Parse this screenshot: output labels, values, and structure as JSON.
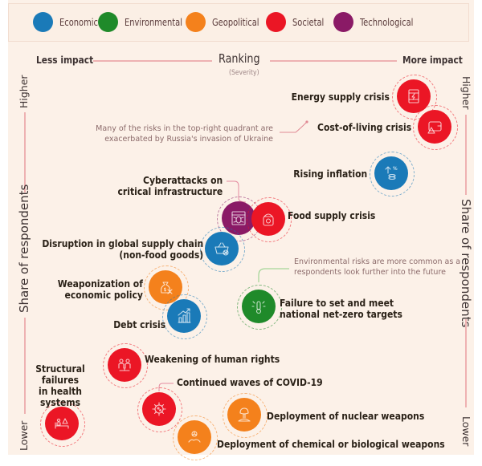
{
  "legend": {
    "items": [
      {
        "label": "Economic",
        "color": "#1a7ab8"
      },
      {
        "label": "Environmental",
        "color": "#1f8a2a"
      },
      {
        "label": "Geopolitical",
        "color": "#f4811c"
      },
      {
        "label": "Societal",
        "color": "#eb1625"
      },
      {
        "label": "Technological",
        "color": "#8a1a66"
      }
    ]
  },
  "x_axis": {
    "title": "Ranking",
    "subtitle": "(Severity)",
    "low_label": "Less impact",
    "high_label": "More impact"
  },
  "y_axis": {
    "title": "Share of respondents",
    "high_label": "Higher",
    "low_label": "Lower"
  },
  "notes": {
    "ukraine": [
      "Many of the risks in the top-right quadrant are",
      "exacerbated by Russia's invasion of Ukraine"
    ],
    "environmental": [
      "Environmental risks are more common as a",
      "respondents look further into the future"
    ]
  },
  "risks": [
    {
      "id": "energy",
      "label": [
        "Energy supply crisis"
      ],
      "category": "Societal",
      "icon": "fuel-barrel-icon"
    },
    {
      "id": "cost",
      "label": [
        "Cost-of-living crisis"
      ],
      "category": "Societal",
      "icon": "wallet-warning-icon"
    },
    {
      "id": "inflation",
      "label": [
        "Rising inflation"
      ],
      "category": "Economic",
      "icon": "coins-arrow-up-icon"
    },
    {
      "id": "cyber",
      "label": [
        "Cyberattacks on",
        "critical infrastructure"
      ],
      "category": "Technological",
      "icon": "computer-bug-icon"
    },
    {
      "id": "food",
      "label": [
        "Food supply crisis"
      ],
      "category": "Societal",
      "icon": "food-sack-icon"
    },
    {
      "id": "supply",
      "label": [
        "Disruption in global supply chain",
        "(non-food goods)"
      ],
      "category": "Economic",
      "icon": "basket-cancel-icon"
    },
    {
      "id": "weapon",
      "label": [
        "Weaponization of",
        "economic policy"
      ],
      "category": "Geopolitical",
      "icon": "money-bag-x-icon"
    },
    {
      "id": "netzero",
      "label": [
        "Failure to set and meet",
        "national net-zero targets"
      ],
      "category": "Environmental",
      "icon": "thermometer-heat-icon"
    },
    {
      "id": "debt",
      "label": [
        "Debt crisis"
      ],
      "category": "Economic",
      "icon": "bar-chart-up-icon"
    },
    {
      "id": "humanrights",
      "label": [
        "Weakening of human rights"
      ],
      "category": "Societal",
      "icon": "people-scale-icon"
    },
    {
      "id": "health",
      "label": [
        "Structural",
        "failures",
        "in health",
        "systems"
      ],
      "category": "Societal",
      "icon": "hospital-bed-icon"
    },
    {
      "id": "covid",
      "label": [
        "Continued waves of COVID-19"
      ],
      "category": "Societal",
      "icon": "virus-icon"
    },
    {
      "id": "nuclear",
      "label": [
        "Deployment of nuclear weapons"
      ],
      "category": "Geopolitical",
      "icon": "mushroom-cloud-icon"
    },
    {
      "id": "chemical",
      "label": [
        "Deployment of chemical or biological weapons"
      ],
      "category": "Geopolitical",
      "icon": "biohazard-hand-icon"
    }
  ]
}
